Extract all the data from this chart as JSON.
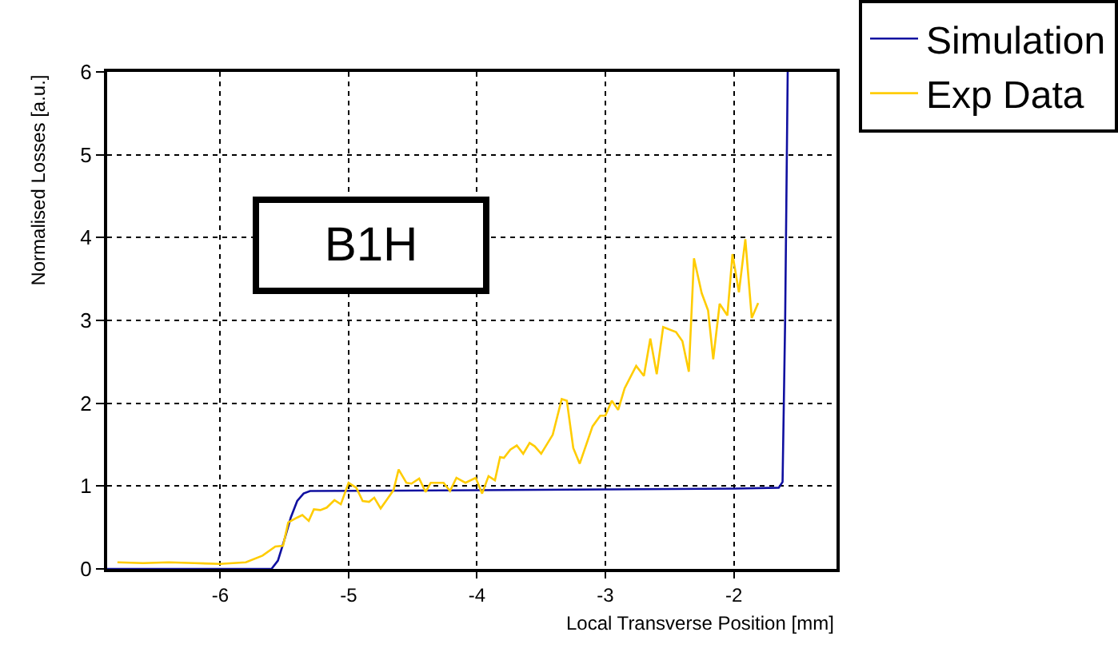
{
  "chart_data": {
    "type": "line",
    "xlabel": "Local Transverse Position [mm]",
    "ylabel": "Normalised Losses [a.u.]",
    "annotations": [
      "B1H"
    ],
    "xlim": [
      -6.88,
      -1.2
    ],
    "xticks": [
      -6,
      -5,
      -4,
      -3,
      -2
    ],
    "ylim": [
      0,
      6
    ],
    "yticks": [
      0,
      1,
      2,
      3,
      4,
      5,
      6
    ],
    "grid": true,
    "legend": "top right",
    "marker": "none",
    "line_style": "solid",
    "series": [
      {
        "name": "Simulation",
        "color": "#1010a0",
        "x": [
          -6.88,
          -5.6,
          -5.55,
          -5.5,
          -5.45,
          -5.4,
          -5.35,
          -5.3,
          -4,
          -3,
          -2,
          -1.65,
          -1.62,
          -1.6,
          -1.58
        ],
        "values": [
          0,
          0,
          0.1,
          0.35,
          0.62,
          0.82,
          0.91,
          0.94,
          0.95,
          0.96,
          0.97,
          0.98,
          1.05,
          3.0,
          6.0
        ]
      },
      {
        "name": "Exp Data",
        "color": "#ffcc00",
        "x": [
          -6.8,
          -6.6,
          -6.4,
          -6.2,
          -6.0,
          -5.9,
          -5.8,
          -5.67,
          -5.57,
          -5.51,
          -5.47,
          -5.4,
          -5.36,
          -5.31,
          -5.27,
          -5.22,
          -5.17,
          -5.11,
          -5.06,
          -5.0,
          -4.94,
          -4.89,
          -4.84,
          -4.8,
          -4.75,
          -4.7,
          -4.65,
          -4.61,
          -4.55,
          -4.51,
          -4.45,
          -4.4,
          -4.36,
          -4.26,
          -4.21,
          -4.16,
          -4.09,
          -4.01,
          -3.96,
          -3.91,
          -3.86,
          -3.82,
          -3.79,
          -3.74,
          -3.69,
          -3.64,
          -3.59,
          -3.55,
          -3.5,
          -3.41,
          -3.34,
          -3.3,
          -3.25,
          -3.2,
          -3.1,
          -3.04,
          -3.0,
          -2.95,
          -2.9,
          -2.85,
          -2.76,
          -2.7,
          -2.65,
          -2.6,
          -2.55,
          -2.45,
          -2.4,
          -2.35,
          -2.31,
          -2.25,
          -2.2,
          -2.16,
          -2.11,
          -2.05,
          -2.01,
          -1.96,
          -1.91,
          -1.86,
          -1.81
        ],
        "values": [
          0.08,
          0.07,
          0.08,
          0.07,
          0.06,
          0.07,
          0.08,
          0.16,
          0.27,
          0.28,
          0.56,
          0.62,
          0.65,
          0.58,
          0.72,
          0.71,
          0.74,
          0.83,
          0.78,
          1.04,
          0.98,
          0.82,
          0.81,
          0.86,
          0.73,
          0.84,
          0.95,
          1.2,
          1.04,
          1.03,
          1.09,
          0.93,
          1.04,
          1.04,
          0.94,
          1.1,
          1.04,
          1.1,
          0.91,
          1.12,
          1.07,
          1.35,
          1.34,
          1.44,
          1.49,
          1.39,
          1.52,
          1.48,
          1.39,
          1.62,
          2.05,
          2.03,
          1.46,
          1.27,
          1.72,
          1.85,
          1.85,
          2.03,
          1.92,
          2.18,
          2.45,
          2.33,
          2.78,
          2.35,
          2.92,
          2.86,
          2.75,
          2.38,
          3.75,
          3.33,
          3.12,
          2.53,
          3.2,
          3.06,
          3.8,
          3.34,
          3.98,
          3.03,
          3.21
        ]
      }
    ]
  }
}
